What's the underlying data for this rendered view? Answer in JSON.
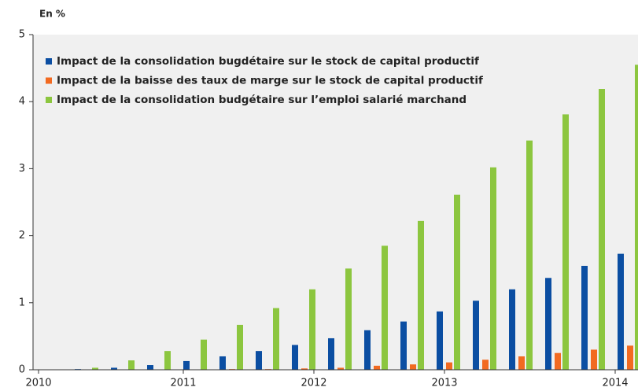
{
  "chart_data": {
    "type": "bar",
    "ylabel": "En %",
    "categories": [
      null,
      null,
      null,
      null,
      null,
      null,
      null,
      null,
      null,
      null,
      null,
      null,
      null,
      null,
      null,
      null
    ],
    "x_labels": [
      "2010",
      "2011",
      "2012",
      "2013",
      "2014"
    ],
    "series": [
      {
        "name": "Impact de la consolidation bugdétaire sur le stock de capital productif",
        "color": "#0b4ea2",
        "values": [
          0.01,
          0.03,
          0.07,
          0.13,
          0.2,
          0.28,
          0.37,
          0.47,
          0.59,
          0.72,
          0.87,
          1.03,
          1.2,
          1.37,
          1.55,
          1.73
        ]
      },
      {
        "name": "Impact de la baisse des taux de marge sur le stock de capital productif",
        "color": "#f26a21",
        "values": [
          0,
          0,
          0,
          0,
          0.01,
          0.01,
          0.02,
          0.03,
          0.06,
          0.08,
          0.11,
          0.15,
          0.2,
          0.25,
          0.3,
          0.36
        ]
      },
      {
        "name": "Impact de la consolidation budgétaire sur l’emploi salarié marchand",
        "color": "#8cc63f",
        "values": [
          0.03,
          0.14,
          0.28,
          0.45,
          0.67,
          0.92,
          1.2,
          1.51,
          1.85,
          2.22,
          2.61,
          3.02,
          3.42,
          3.81,
          4.19,
          4.55
        ]
      }
    ],
    "ylim": [
      0,
      5
    ],
    "yticks": [
      0,
      1,
      2,
      3,
      4,
      5
    ],
    "legend": "top-left"
  }
}
